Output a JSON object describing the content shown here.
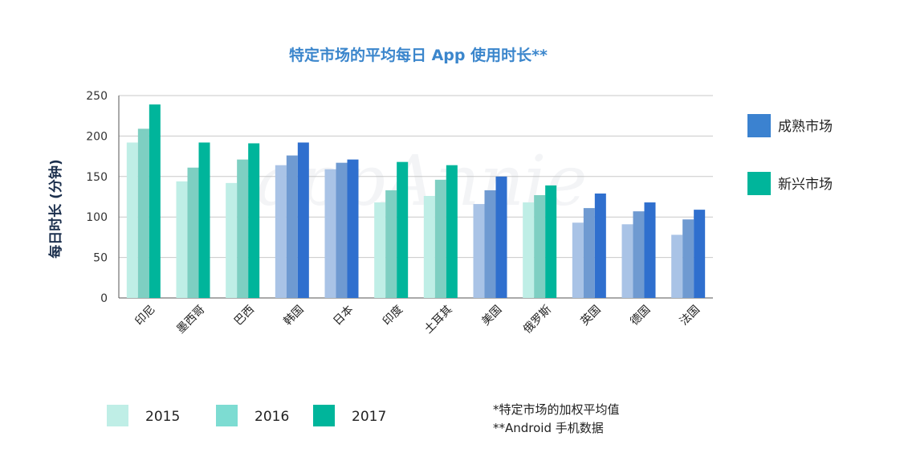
{
  "chart_data": {
    "type": "bar",
    "title": "特定市场的平均每日 App 使用时长**",
    "ylabel": "每日时长 (分钟)",
    "xlabel": "",
    "ylim": [
      0,
      250
    ],
    "yticks": [
      0,
      50,
      100,
      150,
      200,
      250
    ],
    "grid": true,
    "categories": [
      "印尼",
      "墨西哥",
      "巴西",
      "韩国",
      "日本",
      "印度",
      "土耳其",
      "美国",
      "俄罗斯",
      "英国",
      "德国",
      "法国"
    ],
    "market_type": [
      "emerging",
      "emerging",
      "emerging",
      "mature",
      "mature",
      "emerging",
      "emerging",
      "mature",
      "emerging",
      "mature",
      "mature",
      "mature"
    ],
    "years": [
      "2015",
      "2016",
      "2017"
    ],
    "series": [
      {
        "name": "2015",
        "values": [
          192,
          144,
          142,
          164,
          159,
          118,
          126,
          116,
          118,
          93,
          91,
          78
        ]
      },
      {
        "name": "2016",
        "values": [
          209,
          161,
          171,
          176,
          167,
          133,
          146,
          133,
          127,
          111,
          107,
          97
        ]
      },
      {
        "name": "2017",
        "values": [
          239,
          192,
          191,
          192,
          171,
          168,
          164,
          150,
          139,
          129,
          118,
          109
        ]
      }
    ],
    "colors": {
      "emerging": [
        "#bfeee6",
        "#7ecfc2",
        "#00b59b"
      ],
      "mature": [
        "#a9c3e6",
        "#6f9ad1",
        "#2f6fce"
      ]
    },
    "market_legend": [
      {
        "label": "成熟市场",
        "color": "#3b82d0"
      },
      {
        "label": "新兴市场",
        "color": "#00b59b"
      }
    ],
    "year_legend": [
      {
        "label": "2015",
        "color": "#bfeee6"
      },
      {
        "label": "2016",
        "color": "#7ddcd2"
      },
      {
        "label": "2017",
        "color": "#00b59b"
      }
    ],
    "notes": [
      "*特定市场的加权平均值",
      "**Android 手机数据"
    ],
    "watermark": "appAnnie"
  }
}
